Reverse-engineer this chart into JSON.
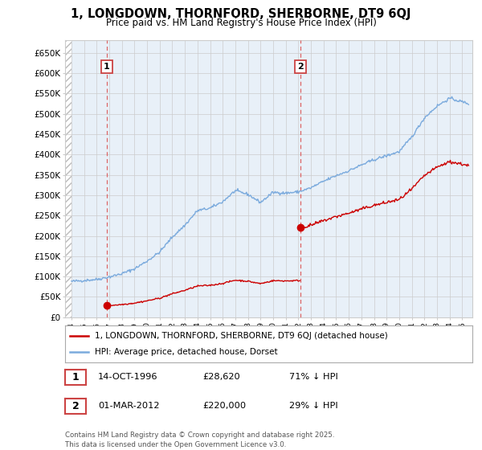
{
  "title": "1, LONGDOWN, THORNFORD, SHERBORNE, DT9 6QJ",
  "subtitle": "Price paid vs. HM Land Registry's House Price Index (HPI)",
  "xlim_start": 1993.5,
  "xlim_end": 2025.8,
  "ylim": [
    0,
    680000
  ],
  "yticks": [
    0,
    50000,
    100000,
    150000,
    200000,
    250000,
    300000,
    350000,
    400000,
    450000,
    500000,
    550000,
    600000,
    650000
  ],
  "ytick_labels": [
    "£0",
    "£50K",
    "£100K",
    "£150K",
    "£200K",
    "£250K",
    "£300K",
    "£350K",
    "£400K",
    "£450K",
    "£500K",
    "£550K",
    "£600K",
    "£650K"
  ],
  "sale1_x": 1996.79,
  "sale1_y": 28620,
  "sale2_x": 2012.17,
  "sale2_y": 220000,
  "legend_line1": "1, LONGDOWN, THORNFORD, SHERBORNE, DT9 6QJ (detached house)",
  "legend_line2": "HPI: Average price, detached house, Dorset",
  "hpi_color": "#7aaadd",
  "price_color": "#cc0000",
  "vline_color": "#dd6666",
  "hatch_color": "#bbbbbb",
  "plot_bg_color": "#e8f0f8",
  "background_color": "#ffffff",
  "grid_color": "#cccccc",
  "footer": "Contains HM Land Registry data © Crown copyright and database right 2025.\nThis data is licensed under the Open Government Licence v3.0.",
  "hpi_keypoints": [
    [
      1994.0,
      88000
    ],
    [
      1995.0,
      90500
    ],
    [
      1996.0,
      93000
    ],
    [
      1997.0,
      99000
    ],
    [
      1998.0,
      107000
    ],
    [
      1999.0,
      119000
    ],
    [
      2000.0,
      138000
    ],
    [
      2001.0,
      160000
    ],
    [
      2002.0,
      197000
    ],
    [
      2003.0,
      226000
    ],
    [
      2004.0,
      262000
    ],
    [
      2005.0,
      268000
    ],
    [
      2006.0,
      284000
    ],
    [
      2007.0,
      311000
    ],
    [
      2008.0,
      302000
    ],
    [
      2009.0,
      282000
    ],
    [
      2010.0,
      307000
    ],
    [
      2011.0,
      305000
    ],
    [
      2012.0,
      308000
    ],
    [
      2013.0,
      318000
    ],
    [
      2014.0,
      334000
    ],
    [
      2015.0,
      348000
    ],
    [
      2016.0,
      360000
    ],
    [
      2017.0,
      374000
    ],
    [
      2018.0,
      387000
    ],
    [
      2019.0,
      397000
    ],
    [
      2020.0,
      407000
    ],
    [
      2021.0,
      443000
    ],
    [
      2022.0,
      490000
    ],
    [
      2023.0,
      519000
    ],
    [
      2024.0,
      538000
    ],
    [
      2025.5,
      525000
    ]
  ]
}
